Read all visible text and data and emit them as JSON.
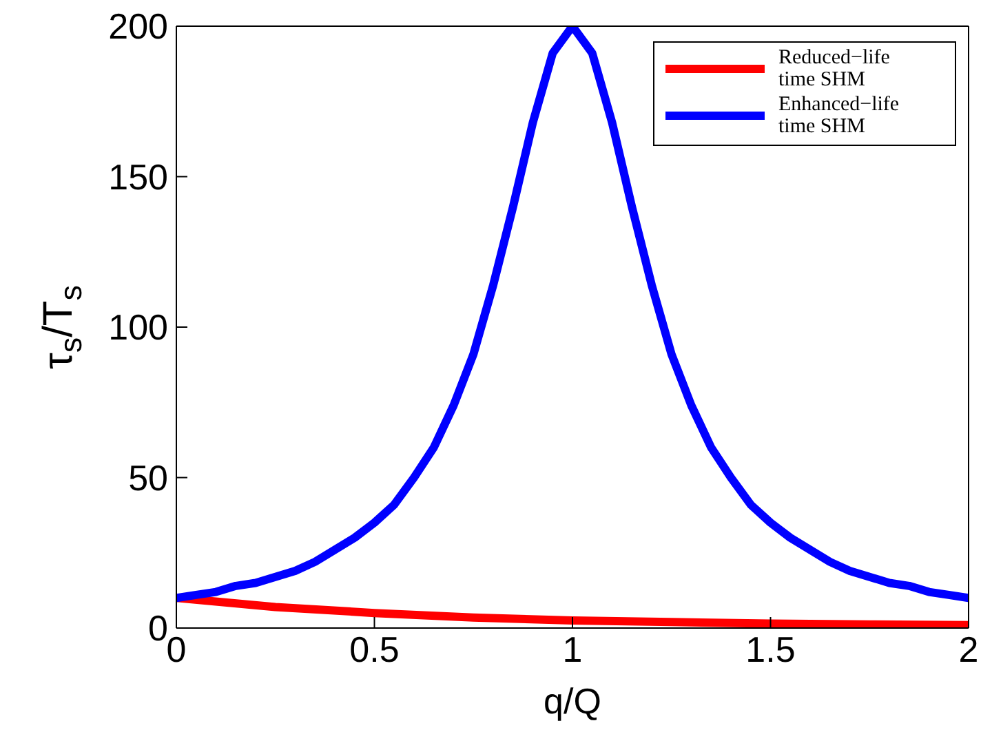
{
  "chart_data": {
    "type": "line",
    "xlabel": "q/Q",
    "ylabel": "τ$_{s}$/T$_{s}$",
    "xlim": [
      0,
      2
    ],
    "xticks": [
      0,
      0.5,
      1,
      1.5,
      2
    ],
    "ylim": [
      0,
      200
    ],
    "yticks": [
      0,
      50,
      100,
      150,
      200
    ],
    "grid": false,
    "legend": "top right",
    "marker": "none",
    "line_style": "solid",
    "series": [
      {
        "name": "Reduced−life time SHM",
        "color": "#ff0000",
        "x": [
          0,
          0.25,
          0.5,
          0.75,
          1,
          1.25,
          1.5,
          1.75,
          2
        ],
        "values": [
          10,
          7,
          5,
          3.5,
          2.5,
          2,
          1.5,
          1.2,
          1
        ]
      },
      {
        "name": "Enhanced−life time SHM",
        "color": "#0000ff",
        "x": [
          0,
          0.05,
          0.1,
          0.15,
          0.2,
          0.25,
          0.3,
          0.35,
          0.4,
          0.45,
          0.5,
          0.55,
          0.6,
          0.65,
          0.7,
          0.75,
          0.8,
          0.85,
          0.9,
          0.95,
          1,
          1.05,
          1.1,
          1.15,
          1.2,
          1.25,
          1.3,
          1.35,
          1.4,
          1.45,
          1.5,
          1.55,
          1.6,
          1.65,
          1.7,
          1.75,
          1.8,
          1.85,
          1.9,
          1.95,
          2
        ],
        "values": [
          10,
          11,
          12,
          14,
          15,
          17,
          19,
          22,
          26,
          30,
          35,
          41,
          50,
          60,
          74,
          91,
          114,
          140,
          168,
          191,
          200,
          191,
          168,
          140,
          114,
          91,
          74,
          60,
          50,
          41,
          35,
          30,
          26,
          22,
          19,
          17,
          15,
          14,
          12,
          11,
          10
        ]
      }
    ]
  }
}
